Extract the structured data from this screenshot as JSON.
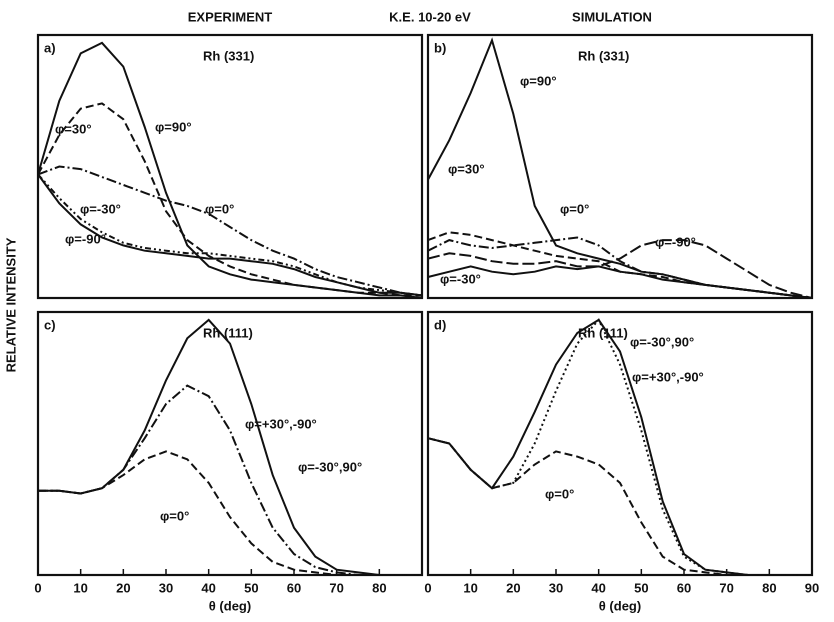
{
  "header": {
    "left": "EXPERIMENT",
    "center": "K.E. 10-20 eV",
    "right": "SIMULATION"
  },
  "y_label": "RELATIVE INTENSITY",
  "chart_data": [
    {
      "type": "line",
      "panel": "a)",
      "annotation": "Rh (331)",
      "xlim": [
        0,
        90
      ],
      "ylim": [
        0,
        1
      ],
      "x": [
        0,
        5,
        10,
        15,
        20,
        25,
        30,
        35,
        40,
        45,
        50,
        55,
        60,
        65,
        70,
        75,
        80,
        85,
        90
      ],
      "series": [
        {
          "name": "φ=90°",
          "color": "#111",
          "dash": "none",
          "values": [
            0.47,
            0.75,
            0.93,
            0.97,
            0.88,
            0.65,
            0.4,
            0.2,
            0.12,
            0.09,
            0.07,
            0.06,
            0.05,
            0.04,
            0.03,
            0.02,
            0.01,
            0.01,
            0.0
          ]
        },
        {
          "name": "φ=30°",
          "color": "#111",
          "dash": "8 4",
          "values": [
            0.47,
            0.62,
            0.72,
            0.74,
            0.68,
            0.52,
            0.33,
            0.22,
            0.16,
            0.12,
            0.09,
            0.07,
            0.05,
            0.04,
            0.03,
            0.02,
            0.02,
            0.01,
            0.01
          ]
        },
        {
          "name": "φ=0°",
          "color": "#111",
          "dash": "10 3 2 3",
          "values": [
            0.47,
            0.5,
            0.49,
            0.46,
            0.43,
            0.4,
            0.37,
            0.35,
            0.32,
            0.27,
            0.22,
            0.18,
            0.15,
            0.11,
            0.08,
            0.06,
            0.04,
            0.02,
            0.01
          ]
        },
        {
          "name": "φ=-30°",
          "color": "#111",
          "dash": "6 3 2 3 2 3",
          "values": [
            0.47,
            0.38,
            0.3,
            0.25,
            0.21,
            0.19,
            0.18,
            0.17,
            0.17,
            0.16,
            0.15,
            0.14,
            0.12,
            0.09,
            0.06,
            0.04,
            0.03,
            0.02,
            0.01
          ]
        },
        {
          "name": "φ=-90°",
          "color": "#111",
          "dash": "none",
          "values": [
            0.47,
            0.36,
            0.28,
            0.23,
            0.2,
            0.18,
            0.17,
            0.16,
            0.15,
            0.15,
            0.14,
            0.13,
            0.11,
            0.08,
            0.06,
            0.04,
            0.02,
            0.02,
            0.01
          ]
        }
      ]
    },
    {
      "type": "line",
      "panel": "b)",
      "annotation": "Rh (331)",
      "xlim": [
        0,
        90
      ],
      "ylim": [
        0,
        1
      ],
      "x": [
        0,
        5,
        10,
        15,
        20,
        25,
        30,
        35,
        40,
        45,
        50,
        55,
        60,
        65,
        70,
        75,
        80,
        85,
        90
      ],
      "series": [
        {
          "name": "φ=90°",
          "color": "#111",
          "dash": "none",
          "values": [
            0.45,
            0.6,
            0.78,
            0.98,
            0.7,
            0.35,
            0.2,
            0.17,
            0.15,
            0.13,
            0.1,
            0.09,
            0.07,
            0.05,
            0.04,
            0.03,
            0.02,
            0.01,
            0.0
          ]
        },
        {
          "name": "φ=30°",
          "color": "#111",
          "dash": "8 4",
          "values": [
            0.22,
            0.25,
            0.24,
            0.22,
            0.2,
            0.18,
            0.16,
            0.15,
            0.14,
            0.1,
            0.09,
            0.08,
            0.06,
            0.05,
            0.04,
            0.03,
            0.02,
            0.01,
            0.0
          ]
        },
        {
          "name": "φ=0°",
          "color": "#111",
          "dash": "10 3 2 3",
          "values": [
            0.18,
            0.22,
            0.2,
            0.19,
            0.2,
            0.21,
            0.22,
            0.23,
            0.2,
            0.14,
            0.1,
            0.09,
            0.07,
            0.05,
            0.04,
            0.03,
            0.02,
            0.01,
            0.0
          ]
        },
        {
          "name": "φ=-90°",
          "color": "#111",
          "dash": "12 4",
          "values": [
            0.15,
            0.17,
            0.16,
            0.14,
            0.13,
            0.13,
            0.14,
            0.12,
            0.12,
            0.15,
            0.2,
            0.22,
            0.22,
            0.2,
            0.15,
            0.1,
            0.05,
            0.02,
            0.0
          ]
        },
        {
          "name": "φ=-30°",
          "color": "#111",
          "dash": "none",
          "values": [
            0.08,
            0.1,
            0.12,
            0.1,
            0.09,
            0.1,
            0.12,
            0.11,
            0.12,
            0.1,
            0.09,
            0.07,
            0.06,
            0.05,
            0.04,
            0.03,
            0.02,
            0.01,
            0.0
          ]
        }
      ]
    },
    {
      "type": "line",
      "panel": "c)",
      "annotation": "Rh (111)",
      "x_label": "θ (deg)",
      "xlim": [
        0,
        90
      ],
      "ylim": [
        0,
        1
      ],
      "xticks": [
        0,
        10,
        20,
        30,
        40,
        50,
        60,
        70,
        80
      ],
      "x": [
        0,
        5,
        10,
        15,
        20,
        25,
        30,
        35,
        40,
        45,
        50,
        55,
        60,
        65,
        70,
        75,
        80,
        85,
        90
      ],
      "series": [
        {
          "name": "φ=-30°,90°",
          "color": "#111",
          "dash": "none",
          "values": [
            0.32,
            0.32,
            0.31,
            0.33,
            0.4,
            0.55,
            0.74,
            0.9,
            0.97,
            0.88,
            0.65,
            0.38,
            0.18,
            0.07,
            0.02,
            0.01,
            0,
            0,
            0
          ]
        },
        {
          "name": "φ=+30°,-90°",
          "color": "#111",
          "dash": "10 3 2 3",
          "values": [
            0.32,
            0.32,
            0.31,
            0.33,
            0.4,
            0.52,
            0.65,
            0.72,
            0.68,
            0.55,
            0.35,
            0.18,
            0.08,
            0.03,
            0.01,
            0,
            0,
            0,
            0
          ]
        },
        {
          "name": "φ=0°",
          "color": "#111",
          "dash": "8 4",
          "values": [
            0.32,
            0.32,
            0.31,
            0.33,
            0.38,
            0.44,
            0.47,
            0.44,
            0.35,
            0.22,
            0.12,
            0.05,
            0.02,
            0.01,
            0,
            0,
            0,
            0,
            0
          ]
        }
      ]
    },
    {
      "type": "line",
      "panel": "d)",
      "annotation": "Rh (111)",
      "x_label": "θ (deg)",
      "xlim": [
        0,
        90
      ],
      "ylim": [
        0,
        1
      ],
      "xticks": [
        0,
        10,
        20,
        30,
        40,
        50,
        60,
        70,
        80,
        90
      ],
      "x": [
        0,
        5,
        10,
        15,
        20,
        25,
        30,
        35,
        40,
        45,
        50,
        55,
        60,
        65,
        70,
        75,
        80,
        85,
        90
      ],
      "series": [
        {
          "name": "φ=-30°,90°",
          "color": "#111",
          "dash": "none",
          "values": [
            0.52,
            0.5,
            0.4,
            0.33,
            0.45,
            0.62,
            0.8,
            0.92,
            0.97,
            0.85,
            0.6,
            0.28,
            0.08,
            0.02,
            0.01,
            0,
            0,
            0,
            0
          ]
        },
        {
          "name": "φ=+30°,-90°",
          "color": "#111",
          "dash": "2 3",
          "values": [
            0.52,
            0.5,
            0.4,
            0.33,
            0.35,
            0.5,
            0.7,
            0.88,
            0.97,
            0.8,
            0.55,
            0.25,
            0.07,
            0.02,
            0.01,
            0,
            0,
            0,
            0
          ]
        },
        {
          "name": "φ=0°",
          "color": "#111",
          "dash": "8 4",
          "values": [
            0.52,
            0.5,
            0.4,
            0.33,
            0.35,
            0.42,
            0.47,
            0.45,
            0.42,
            0.35,
            0.2,
            0.07,
            0.02,
            0.01,
            0,
            0,
            0,
            0,
            0
          ]
        }
      ]
    }
  ]
}
